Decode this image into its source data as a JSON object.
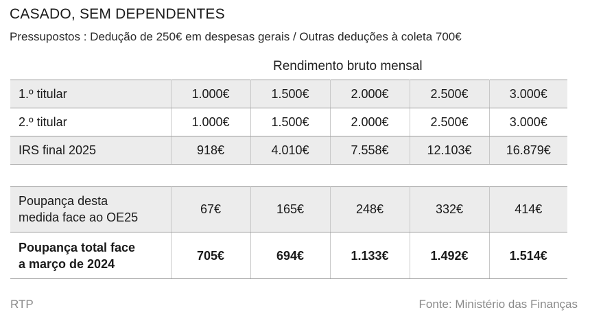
{
  "title": "CASADO, SEM DEPENDENTES",
  "subtitle": "Pressupostos : Dedução de 250€ em despesas gerais / Outras deduções à coleta 700€",
  "column_header": "Rendimento bruto mensal",
  "table1": {
    "rows": [
      {
        "label": "1.º titular",
        "values": [
          "1.000€",
          "1.500€",
          "2.000€",
          "2.500€",
          "3.000€"
        ]
      },
      {
        "label": "2.º titular",
        "values": [
          "1.000€",
          "1.500€",
          "2.000€",
          "2.500€",
          "3.000€"
        ]
      },
      {
        "label": "IRS final 2025",
        "values": [
          "918€",
          "4.010€",
          "7.558€",
          "12.103€",
          "16.879€"
        ]
      }
    ]
  },
  "table2": {
    "rows": [
      {
        "label_line1": "Poupança desta",
        "label_line2": "medida face ao OE25",
        "values": [
          "67€",
          "165€",
          "248€",
          "332€",
          "414€"
        ]
      },
      {
        "label_line1": "Poupança total face",
        "label_line2": "a março de 2024",
        "values": [
          "705€",
          "694€",
          "1.133€",
          "1.492€",
          "1.514€"
        ]
      }
    ]
  },
  "footer": {
    "left": "RTP",
    "right": "Fonte: Ministério das Finanças"
  }
}
